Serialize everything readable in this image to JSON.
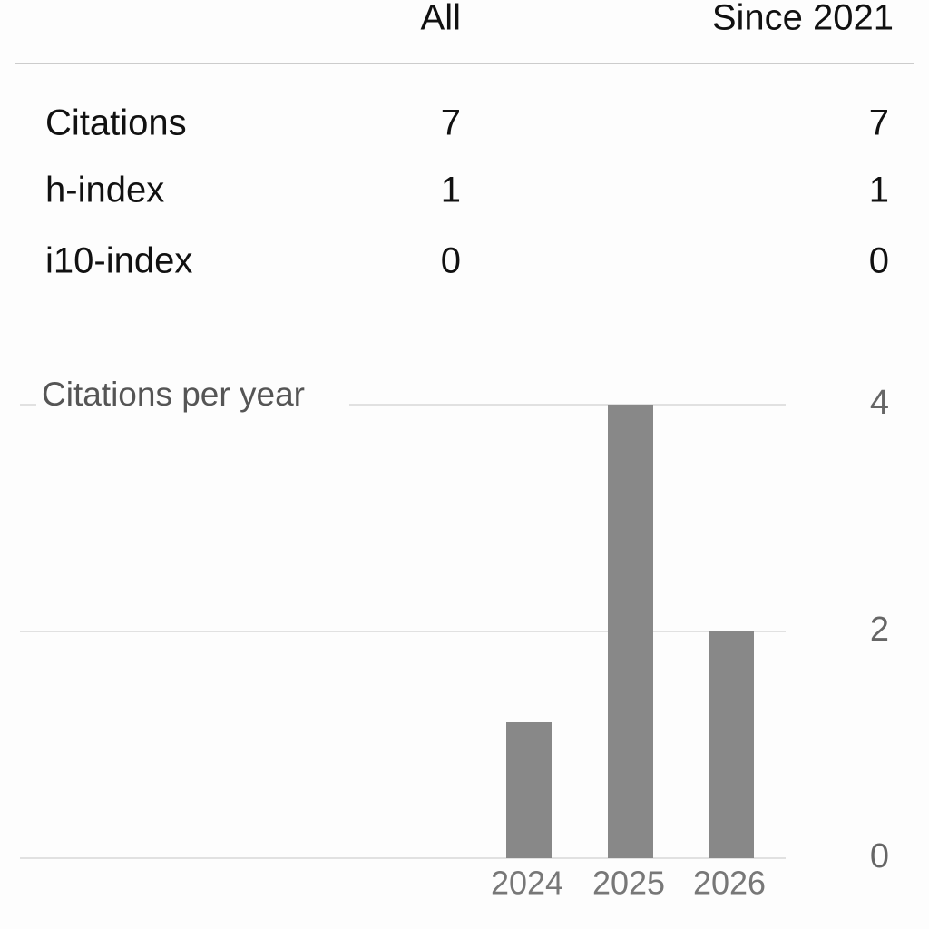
{
  "table": {
    "header": [
      "All",
      "Since 2021"
    ],
    "rows": [
      [
        "Citations",
        "7",
        "7"
      ],
      [
        "h-index",
        "1",
        "1"
      ],
      [
        "i10-index",
        "0",
        "0"
      ]
    ]
  },
  "chart_data": {
    "type": "bar",
    "title": "Citations per year",
    "categories": [
      "2024",
      "2025",
      "2026"
    ],
    "values": [
      1.2,
      4,
      2
    ],
    "color": "#888888",
    "ylim": [
      0,
      4
    ],
    "yticks": [
      0,
      2,
      4
    ],
    "grid": true
  }
}
